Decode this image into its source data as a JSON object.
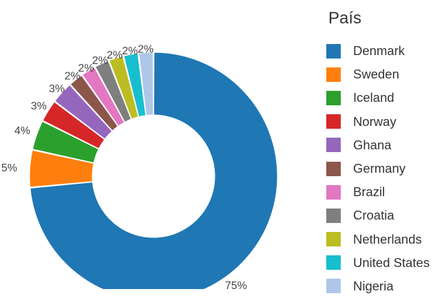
{
  "chart_data": {
    "type": "pie",
    "variant": "donut",
    "legend": {
      "title": "País",
      "placement": "right"
    },
    "series": [
      {
        "name": "Denmark",
        "value": 75,
        "label": "75%",
        "color": "#1f77b4"
      },
      {
        "name": "Sweden",
        "value": 5,
        "label": "5%",
        "color": "#ff7f0e"
      },
      {
        "name": "Iceland",
        "value": 4,
        "label": "4%",
        "color": "#2ca02c"
      },
      {
        "name": "Norway",
        "value": 3,
        "label": "3%",
        "color": "#d62728"
      },
      {
        "name": "Ghana",
        "value": 3,
        "label": "3%",
        "color": "#9467bd"
      },
      {
        "name": "Germany",
        "value": 2,
        "label": "2%",
        "color": "#8c564b"
      },
      {
        "name": "Brazil",
        "value": 2,
        "label": "2%",
        "color": "#e377c2"
      },
      {
        "name": "Croatia",
        "value": 2,
        "label": "2%",
        "color": "#7f7f7f"
      },
      {
        "name": "Netherlands",
        "value": 2,
        "label": "2%",
        "color": "#bcbd22"
      },
      {
        "name": "United States",
        "value": 2,
        "label": "2%",
        "color": "#17becf"
      },
      {
        "name": "Nigeria",
        "value": 2,
        "label": "2%",
        "color": "#aec7e8"
      }
    ]
  }
}
